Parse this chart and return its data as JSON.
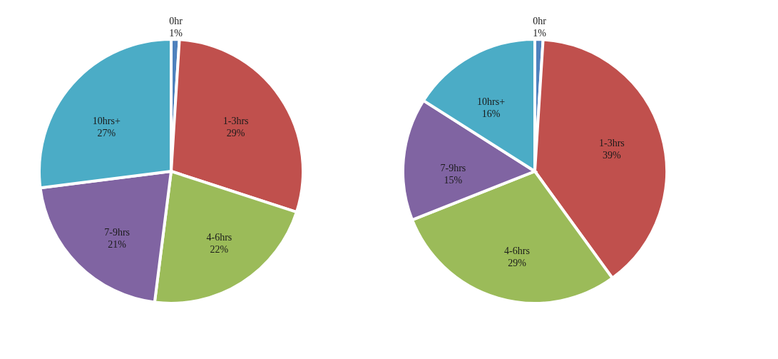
{
  "chart_data": [
    {
      "type": "pie",
      "categories": [
        "0hr",
        "1-3hrs",
        "4-6hrs",
        "7-9hrs",
        "10hrs+"
      ],
      "values": [
        1,
        29,
        22,
        21,
        27
      ],
      "value_labels": [
        "1%",
        "29%",
        "22%",
        "21%",
        "27%"
      ],
      "colors": [
        "#4f81bd",
        "#c0504d",
        "#9bbb59",
        "#8064a2",
        "#4bacc6"
      ],
      "legend": false
    },
    {
      "type": "pie",
      "categories": [
        "0hr",
        "1-3hrs",
        "4-6hrs",
        "7-9hrs",
        "10hrs+"
      ],
      "values": [
        1,
        39,
        29,
        15,
        16
      ],
      "value_labels": [
        "1%",
        "39%",
        "29%",
        "15%",
        "16%"
      ],
      "colors": [
        "#4f81bd",
        "#c0504d",
        "#9bbb59",
        "#8064a2",
        "#4bacc6"
      ],
      "legend": false
    }
  ]
}
